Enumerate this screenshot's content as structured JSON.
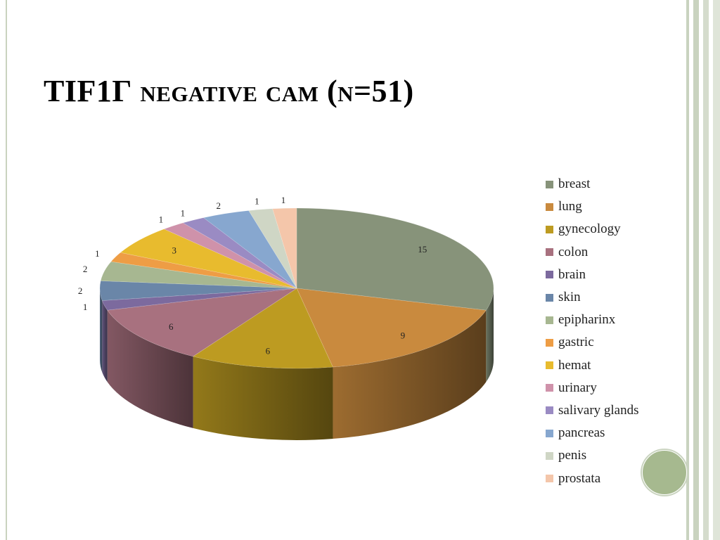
{
  "title": {
    "main": "TIF1Г",
    "rest": "negative cam (n=51)"
  },
  "chart_data": {
    "type": "pie",
    "title": "TIF1Г negative cam (n=51)",
    "categories": [
      "breast",
      "lung",
      "gynecology",
      "colon",
      "brain",
      "skin",
      "epipharinx",
      "gastric",
      "hemat",
      "urinary",
      "salivary glands",
      "pancreas",
      "penis",
      "prostata"
    ],
    "values": [
      15,
      9,
      6,
      6,
      1,
      2,
      2,
      1,
      3,
      1,
      1,
      2,
      1,
      1
    ],
    "colors": [
      "#87937a",
      "#c98a3e",
      "#bd9b21",
      "#a8717f",
      "#7c6a9e",
      "#6a86a8",
      "#a7b791",
      "#ee9d45",
      "#e8bb2e",
      "#cf92aa",
      "#9a8bc3",
      "#87a7cf",
      "#cfd6c5",
      "#f4c6aa"
    ],
    "legend_position": "right",
    "three_d": true
  }
}
